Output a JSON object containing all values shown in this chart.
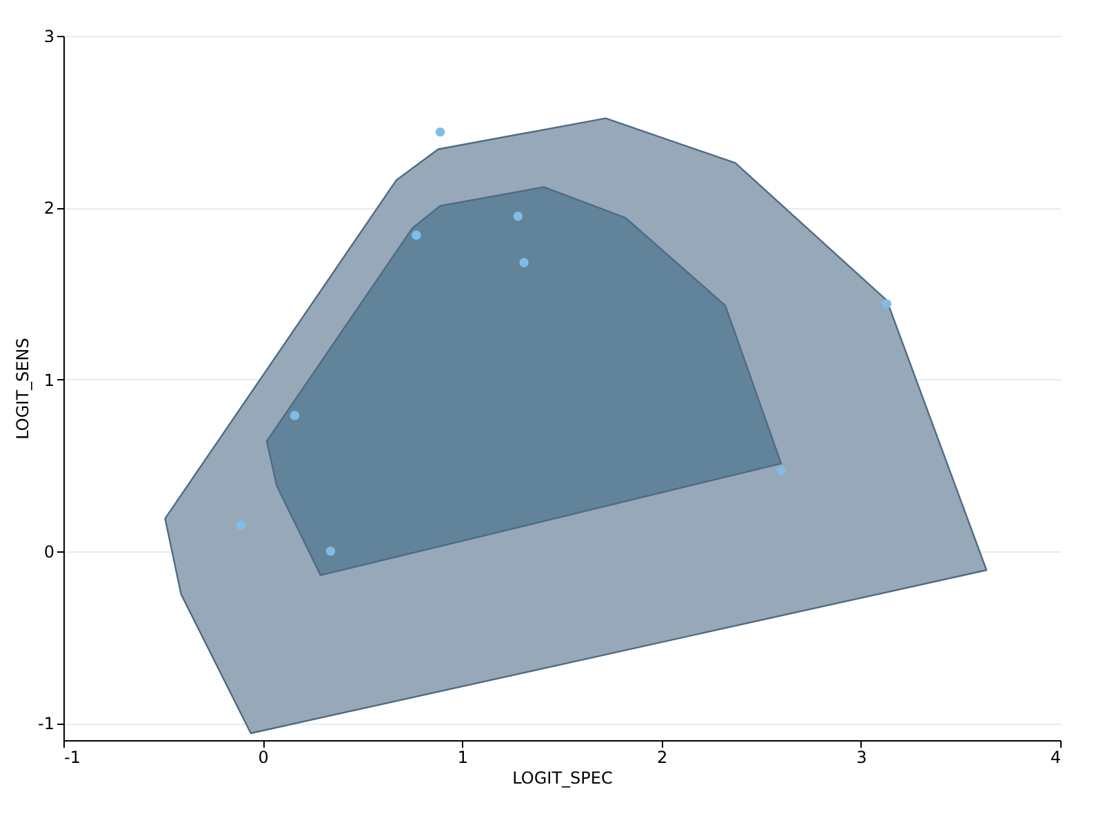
{
  "chart_data": {
    "type": "scatter",
    "xlabel": "LOGIT_SPEC",
    "ylabel": "LOGIT_SENS",
    "xlim": [
      -1,
      4
    ],
    "ylim": [
      -1.1,
      3
    ],
    "xticks": [
      -1,
      0,
      1,
      2,
      3,
      4
    ],
    "yticks": [
      -1,
      0,
      1,
      2,
      3
    ],
    "grid": "y",
    "series": [
      {
        "type": "area",
        "color": "#97a8b9",
        "x": [
          -0.49,
          0.67,
          0.88,
          1.72,
          2.37,
          3.13,
          3.63,
          -0.06,
          -0.41
        ],
        "values": [
          0.19,
          2.16,
          2.34,
          2.52,
          2.26,
          1.46,
          -0.11,
          -1.06,
          -0.25
        ]
      },
      {
        "type": "area",
        "color": "#62849b",
        "x": [
          0.02,
          0.75,
          0.89,
          1.41,
          1.82,
          2.32,
          2.6,
          0.29,
          0.07
        ],
        "values": [
          0.64,
          1.88,
          2.01,
          2.12,
          1.94,
          1.43,
          0.51,
          -0.14,
          0.38
        ]
      },
      {
        "color": "#7fbde8",
        "x": [
          0.89,
          1.28,
          0.77,
          1.31,
          3.13,
          0.16,
          2.6,
          -0.11,
          0.34
        ],
        "values": [
          2.44,
          1.95,
          1.84,
          1.68,
          1.44,
          0.79,
          0.47,
          0.15,
          0.0
        ]
      }
    ]
  }
}
